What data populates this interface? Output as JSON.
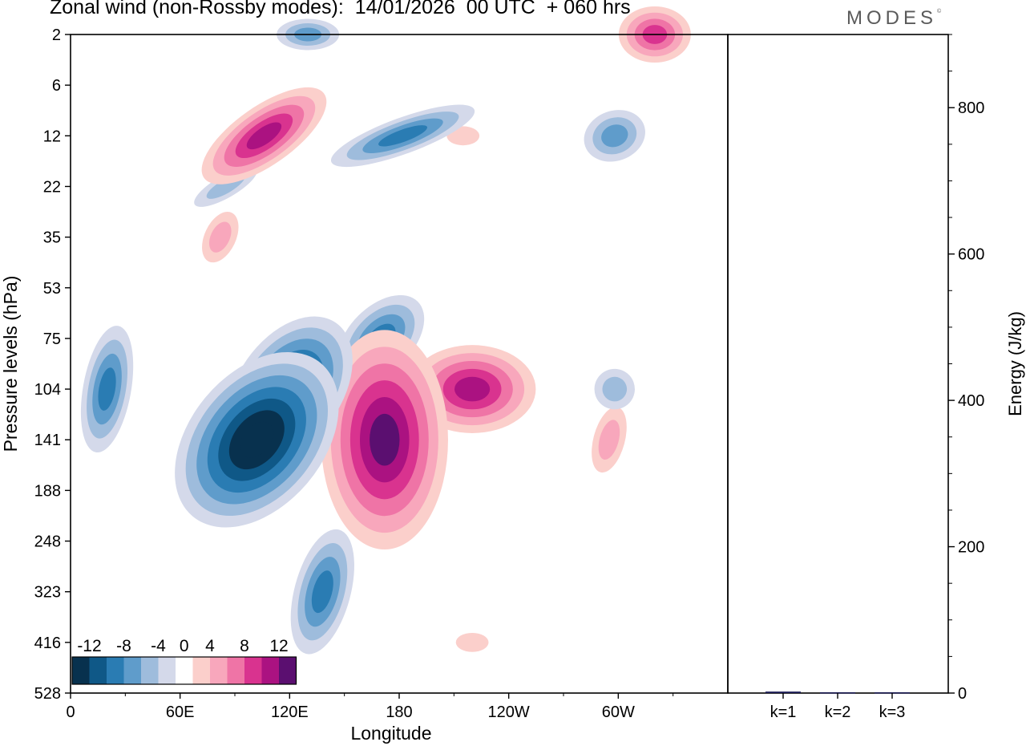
{
  "figure": {
    "title": "Zonal wind (non-Rossby modes):  14/01/2026  00 UTC  + 060 hrs",
    "logo": "MODES",
    "logo_mark": "©"
  },
  "chart_data": [
    {
      "type": "heatmap",
      "title": "Zonal wind (non-Rossby modes):  14/01/2026  00 UTC  + 060 hrs",
      "xlabel": "Longitude",
      "ylabel": "Pressure levels (hPa)",
      "x_ticks": [
        "0",
        "60E",
        "120E",
        "180",
        "120W",
        "60W"
      ],
      "x_tick_values": [
        0,
        60,
        120,
        180,
        240,
        300
      ],
      "xlim": [
        0,
        360
      ],
      "y_ticks": [
        "2",
        "6",
        "12",
        "22",
        "35",
        "53",
        "75",
        "104",
        "141",
        "188",
        "248",
        "323",
        "416",
        "528"
      ],
      "colorbar": {
        "labels": [
          "-12",
          "-8",
          "-4",
          "0",
          "4",
          "8",
          "12"
        ],
        "label_values": [
          -12,
          -8,
          -4,
          0,
          4,
          8,
          12
        ],
        "levels": [
          -14,
          -12,
          -10,
          -8,
          -6,
          -4,
          -2,
          2,
          4,
          6,
          8,
          10,
          12,
          14
        ],
        "colors": [
          "#08314e",
          "#0f5887",
          "#2a7cb3",
          "#5f9ccb",
          "#9ebcdc",
          "#d4d9ea",
          "#ffffff",
          "#fbcfcb",
          "#f8a7bc",
          "#ef74a6",
          "#d9338f",
          "#ab1281",
          "#5b0f70"
        ]
      },
      "features": [
        {
          "lon": 102,
          "level": 141,
          "value": -15
        },
        {
          "lon": 120,
          "level": 104,
          "value": -13
        },
        {
          "lon": 138,
          "level": 323,
          "value": -8
        },
        {
          "lon": 170,
          "level": 75,
          "value": -8
        },
        {
          "lon": 182,
          "level": 12,
          "value": -8
        },
        {
          "lon": 20,
          "level": 104,
          "value": -8
        },
        {
          "lon": 130,
          "level": 2,
          "value": -6
        },
        {
          "lon": 298,
          "level": 12,
          "value": -6
        },
        {
          "lon": 298,
          "level": 104,
          "value": -5
        },
        {
          "lon": 85,
          "level": 22,
          "value": -4
        },
        {
          "lon": 172,
          "level": 141,
          "value": 13
        },
        {
          "lon": 220,
          "level": 104,
          "value": 11
        },
        {
          "lon": 106,
          "level": 12,
          "value": 10
        },
        {
          "lon": 320,
          "level": 2,
          "value": 9
        },
        {
          "lon": 82,
          "level": 35,
          "value": 5
        },
        {
          "lon": 295,
          "level": 141,
          "value": 5
        },
        {
          "lon": 215,
          "level": 12,
          "value": 3
        },
        {
          "lon": 220,
          "level": 416,
          "value": 3
        }
      ]
    },
    {
      "type": "bar",
      "ylabel": "Energy (J/kg)",
      "categories": [
        "k=1",
        "k=2",
        "k=3"
      ],
      "values": [
        2,
        1,
        1
      ],
      "ylim": [
        0,
        900
      ],
      "y_ticks": [
        0,
        200,
        400,
        600,
        800
      ],
      "bar_color": "#1a1a55"
    }
  ]
}
